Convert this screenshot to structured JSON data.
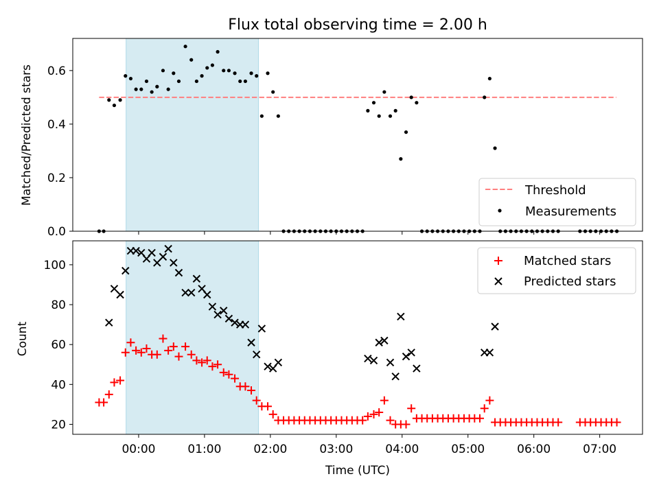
{
  "chart_data": [
    {
      "type": "scatter",
      "title": "Flux total observing time = 2.00 h",
      "xlabel": "",
      "ylabel": "Matched/Predicted stars",
      "ylim": [
        0,
        0.72
      ],
      "yticks": [
        "0.0",
        "0.2",
        "0.4",
        "0.6"
      ],
      "ytick_values": [
        0,
        0.2,
        0.4,
        0.6
      ],
      "xlim": [
        -1.0,
        7.65
      ],
      "shaded_region": [
        -0.19,
        1.82
      ],
      "threshold": {
        "name": "Threshold",
        "value": 0.5,
        "x_range": [
          -0.6,
          7.25
        ],
        "color": "#ff7f7f"
      },
      "legend": {
        "position": "lower-right",
        "entries": [
          "Threshold",
          "Measurements"
        ]
      },
      "series": [
        {
          "name": "Measurements",
          "marker": "dot",
          "color": "#000000",
          "points": [
            [
              -0.6,
              0
            ],
            [
              -0.53,
              0
            ],
            [
              -0.45,
              0.49
            ],
            [
              -0.37,
              0.47
            ],
            [
              -0.28,
              0.49
            ],
            [
              -0.2,
              0.58
            ],
            [
              -0.12,
              0.57
            ],
            [
              -0.04,
              0.53
            ],
            [
              0.04,
              0.53
            ],
            [
              0.12,
              0.56
            ],
            [
              0.2,
              0.52
            ],
            [
              0.28,
              0.54
            ],
            [
              0.37,
              0.6
            ],
            [
              0.45,
              0.53
            ],
            [
              0.53,
              0.59
            ],
            [
              0.61,
              0.56
            ],
            [
              0.71,
              0.69
            ],
            [
              0.8,
              0.64
            ],
            [
              0.88,
              0.56
            ],
            [
              0.96,
              0.58
            ],
            [
              1.04,
              0.61
            ],
            [
              1.12,
              0.62
            ],
            [
              1.2,
              0.67
            ],
            [
              1.29,
              0.6
            ],
            [
              1.37,
              0.6
            ],
            [
              1.46,
              0.59
            ],
            [
              1.54,
              0.56
            ],
            [
              1.62,
              0.56
            ],
            [
              1.71,
              0.59
            ],
            [
              1.79,
              0.58
            ],
            [
              1.87,
              0.43
            ],
            [
              1.96,
              0.59
            ],
            [
              2.04,
              0.52
            ],
            [
              2.12,
              0.43
            ],
            [
              2.2,
              0
            ],
            [
              2.28,
              0
            ],
            [
              2.36,
              0
            ],
            [
              2.44,
              0
            ],
            [
              2.52,
              0
            ],
            [
              2.6,
              0
            ],
            [
              2.68,
              0
            ],
            [
              2.76,
              0
            ],
            [
              2.84,
              0
            ],
            [
              2.92,
              0
            ],
            [
              3.0,
              0
            ],
            [
              3.08,
              0
            ],
            [
              3.16,
              0
            ],
            [
              3.24,
              0
            ],
            [
              3.32,
              0
            ],
            [
              3.4,
              0
            ],
            [
              3.48,
              0.45
            ],
            [
              3.57,
              0.48
            ],
            [
              3.65,
              0.43
            ],
            [
              3.73,
              0.52
            ],
            [
              3.82,
              0.43
            ],
            [
              3.9,
              0.45
            ],
            [
              3.98,
              0.27
            ],
            [
              4.06,
              0.37
            ],
            [
              4.14,
              0.5
            ],
            [
              4.22,
              0.48
            ],
            [
              4.3,
              0
            ],
            [
              4.38,
              0
            ],
            [
              4.46,
              0
            ],
            [
              4.54,
              0
            ],
            [
              4.62,
              0
            ],
            [
              4.7,
              0
            ],
            [
              4.78,
              0
            ],
            [
              4.86,
              0
            ],
            [
              4.94,
              0
            ],
            [
              5.02,
              0
            ],
            [
              5.1,
              0
            ],
            [
              5.18,
              0
            ],
            [
              5.25,
              0.5
            ],
            [
              5.33,
              0.57
            ],
            [
              5.41,
              0.31
            ],
            [
              5.49,
              0
            ],
            [
              5.57,
              0
            ],
            [
              5.65,
              0
            ],
            [
              5.73,
              0
            ],
            [
              5.81,
              0
            ],
            [
              5.89,
              0
            ],
            [
              5.97,
              0
            ],
            [
              6.05,
              0
            ],
            [
              6.13,
              0
            ],
            [
              6.21,
              0
            ],
            [
              6.29,
              0
            ],
            [
              6.37,
              0
            ],
            [
              6.7,
              0
            ],
            [
              6.78,
              0
            ],
            [
              6.86,
              0
            ],
            [
              6.94,
              0
            ],
            [
              7.02,
              0
            ],
            [
              7.1,
              0
            ],
            [
              7.18,
              0
            ],
            [
              7.26,
              0
            ]
          ]
        }
      ]
    },
    {
      "type": "scatter",
      "title": "",
      "xlabel": "Time (UTC)",
      "ylabel": "Count",
      "ylim": [
        15,
        112
      ],
      "yticks": [
        "20",
        "40",
        "60",
        "80",
        "100"
      ],
      "ytick_values": [
        20,
        40,
        60,
        80,
        100
      ],
      "xlim": [
        -1.0,
        7.65
      ],
      "xticks": [
        "00:00",
        "01:00",
        "02:00",
        "03:00",
        "04:00",
        "05:00",
        "06:00",
        "07:00"
      ],
      "xtick_values": [
        0,
        1,
        2,
        3,
        4,
        5,
        6,
        7
      ],
      "shaded_region": [
        -0.19,
        1.82
      ],
      "legend": {
        "position": "top-right",
        "entries": [
          "Matched stars",
          "Predicted stars"
        ]
      },
      "series": [
        {
          "name": "Matched stars",
          "marker": "plus",
          "color": "#ff0000",
          "points": [
            [
              -0.6,
              31
            ],
            [
              -0.53,
              31
            ],
            [
              -0.45,
              35
            ],
            [
              -0.37,
              41
            ],
            [
              -0.28,
              42
            ],
            [
              -0.2,
              56
            ],
            [
              -0.12,
              61
            ],
            [
              -0.04,
              57
            ],
            [
              0.04,
              56
            ],
            [
              0.12,
              58
            ],
            [
              0.2,
              55
            ],
            [
              0.28,
              55
            ],
            [
              0.37,
              63
            ],
            [
              0.45,
              57
            ],
            [
              0.53,
              59
            ],
            [
              0.61,
              54
            ],
            [
              0.71,
              59
            ],
            [
              0.8,
              55
            ],
            [
              0.88,
              52
            ],
            [
              0.96,
              51
            ],
            [
              1.04,
              52
            ],
            [
              1.12,
              49
            ],
            [
              1.2,
              50
            ],
            [
              1.29,
              46
            ],
            [
              1.37,
              45
            ],
            [
              1.46,
              43
            ],
            [
              1.54,
              39
            ],
            [
              1.62,
              39
            ],
            [
              1.71,
              37
            ],
            [
              1.79,
              32
            ],
            [
              1.87,
              29
            ],
            [
              1.96,
              29
            ],
            [
              2.04,
              25
            ],
            [
              2.12,
              22
            ],
            [
              2.2,
              22
            ],
            [
              2.28,
              22
            ],
            [
              2.36,
              22
            ],
            [
              2.44,
              22
            ],
            [
              2.52,
              22
            ],
            [
              2.6,
              22
            ],
            [
              2.68,
              22
            ],
            [
              2.76,
              22
            ],
            [
              2.84,
              22
            ],
            [
              2.92,
              22
            ],
            [
              3.0,
              22
            ],
            [
              3.08,
              22
            ],
            [
              3.16,
              22
            ],
            [
              3.24,
              22
            ],
            [
              3.32,
              22
            ],
            [
              3.4,
              22
            ],
            [
              3.48,
              24
            ],
            [
              3.57,
              25
            ],
            [
              3.65,
              26
            ],
            [
              3.73,
              32
            ],
            [
              3.82,
              22
            ],
            [
              3.9,
              20
            ],
            [
              3.98,
              20
            ],
            [
              4.06,
              20
            ],
            [
              4.14,
              28
            ],
            [
              4.22,
              23
            ],
            [
              4.3,
              23
            ],
            [
              4.38,
              23
            ],
            [
              4.46,
              23
            ],
            [
              4.54,
              23
            ],
            [
              4.62,
              23
            ],
            [
              4.7,
              23
            ],
            [
              4.78,
              23
            ],
            [
              4.86,
              23
            ],
            [
              4.94,
              23
            ],
            [
              5.02,
              23
            ],
            [
              5.1,
              23
            ],
            [
              5.18,
              23
            ],
            [
              5.25,
              28
            ],
            [
              5.33,
              32
            ],
            [
              5.41,
              21
            ],
            [
              5.49,
              21
            ],
            [
              5.57,
              21
            ],
            [
              5.65,
              21
            ],
            [
              5.73,
              21
            ],
            [
              5.81,
              21
            ],
            [
              5.89,
              21
            ],
            [
              5.97,
              21
            ],
            [
              6.05,
              21
            ],
            [
              6.13,
              21
            ],
            [
              6.21,
              21
            ],
            [
              6.29,
              21
            ],
            [
              6.37,
              21
            ],
            [
              6.7,
              21
            ],
            [
              6.78,
              21
            ],
            [
              6.86,
              21
            ],
            [
              6.94,
              21
            ],
            [
              7.02,
              21
            ],
            [
              7.1,
              21
            ],
            [
              7.18,
              21
            ],
            [
              7.26,
              21
            ]
          ]
        },
        {
          "name": "Predicted stars",
          "marker": "x",
          "color": "#000000",
          "points": [
            [
              -0.45,
              71
            ],
            [
              -0.37,
              88
            ],
            [
              -0.28,
              85
            ],
            [
              -0.2,
              97
            ],
            [
              -0.12,
              107
            ],
            [
              -0.04,
              107
            ],
            [
              0.04,
              106
            ],
            [
              0.12,
              103
            ],
            [
              0.2,
              106
            ],
            [
              0.28,
              101
            ],
            [
              0.37,
              104
            ],
            [
              0.45,
              108
            ],
            [
              0.53,
              101
            ],
            [
              0.61,
              96
            ],
            [
              0.71,
              86
            ],
            [
              0.8,
              86
            ],
            [
              0.88,
              93
            ],
            [
              0.96,
              88
            ],
            [
              1.04,
              85
            ],
            [
              1.12,
              79
            ],
            [
              1.2,
              75
            ],
            [
              1.29,
              77
            ],
            [
              1.37,
              73
            ],
            [
              1.46,
              71
            ],
            [
              1.54,
              70
            ],
            [
              1.62,
              70
            ],
            [
              1.71,
              61
            ],
            [
              1.79,
              55
            ],
            [
              1.87,
              68
            ],
            [
              1.96,
              49
            ],
            [
              2.04,
              48
            ],
            [
              2.12,
              51
            ],
            [
              3.48,
              53
            ],
            [
              3.57,
              52
            ],
            [
              3.65,
              61
            ],
            [
              3.73,
              62
            ],
            [
              3.82,
              51
            ],
            [
              3.9,
              44
            ],
            [
              3.98,
              74
            ],
            [
              4.06,
              54
            ],
            [
              4.14,
              56
            ],
            [
              4.22,
              48
            ],
            [
              5.25,
              56
            ],
            [
              5.33,
              56
            ],
            [
              5.41,
              69
            ]
          ]
        }
      ]
    }
  ]
}
